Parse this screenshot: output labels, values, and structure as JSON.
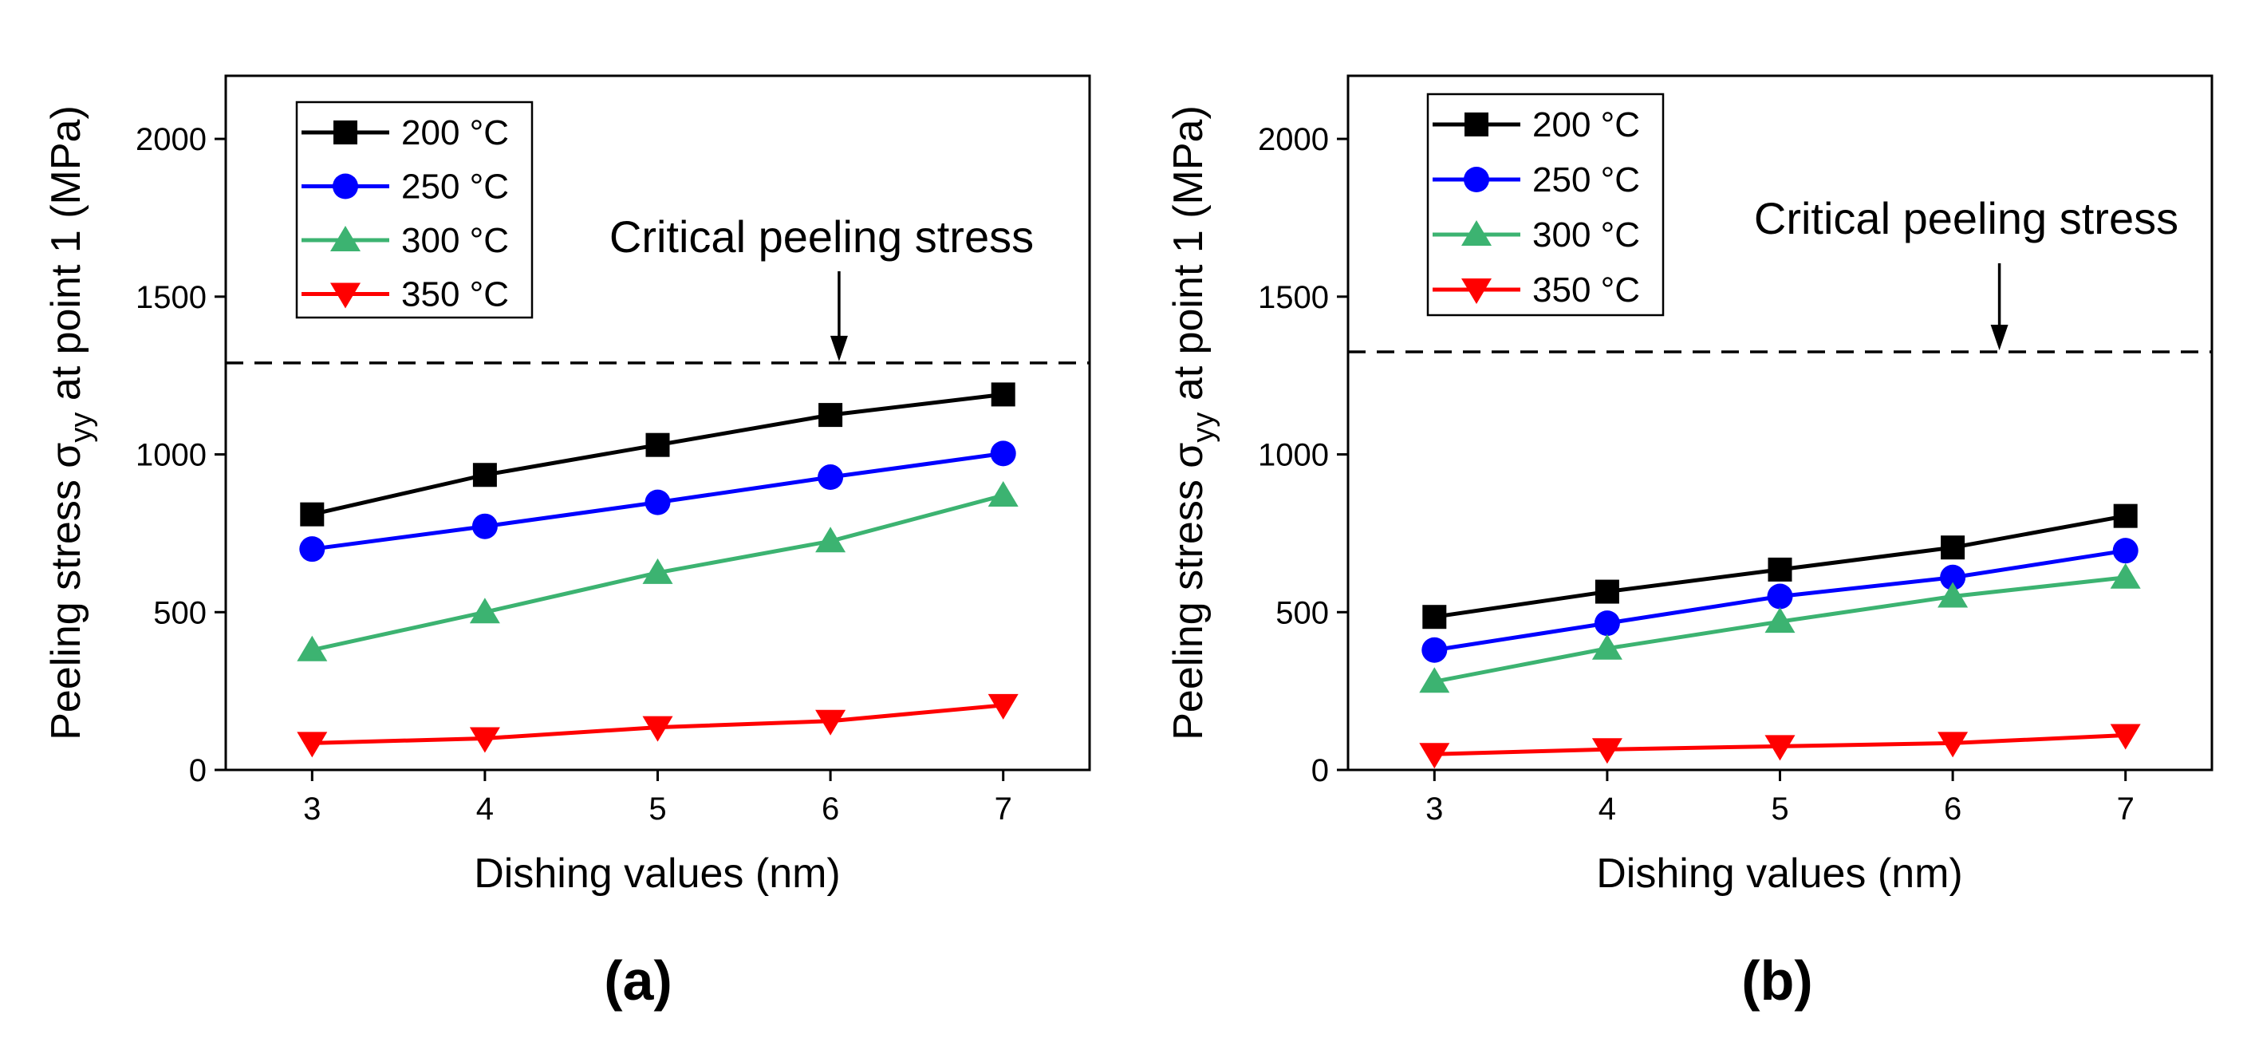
{
  "chart_data": [
    {
      "type": "line",
      "panel_label": "(a)",
      "xlabel": "Dishing values (nm)",
      "ylabel_prefix": "Peeling stress σ",
      "ylabel_sub": "yy",
      "ylabel_suffix": " at point 1 (MPa)",
      "x": [
        3,
        4,
        5,
        6,
        7
      ],
      "xlim": [
        2.5,
        7.5
      ],
      "ylim": [
        0,
        2200
      ],
      "xticks": [
        3,
        4,
        5,
        6,
        7
      ],
      "yticks": [
        0,
        500,
        1000,
        1500,
        2000
      ],
      "legend_position": "top-left",
      "series": [
        {
          "name": "200 °C",
          "color": "#000000",
          "marker": "square",
          "values": [
            810,
            935,
            1030,
            1125,
            1190
          ]
        },
        {
          "name": "250 °C",
          "color": "#0000ff",
          "marker": "circle",
          "values": [
            700,
            772,
            848,
            928,
            1003
          ]
        },
        {
          "name": "300 °C",
          "color": "#3cb371",
          "marker": "triangle-up",
          "values": [
            380,
            500,
            625,
            725,
            870
          ]
        },
        {
          "name": "350 °C",
          "color": "#ff0000",
          "marker": "triangle-down",
          "values": [
            85,
            100,
            135,
            155,
            205
          ]
        }
      ],
      "reference_line": {
        "value": 1290,
        "style": "dashed"
      },
      "annotation": {
        "text": "Critical peeling stress",
        "arrow_x": 6.05
      }
    },
    {
      "type": "line",
      "panel_label": "(b)",
      "xlabel": "Dishing values (nm)",
      "ylabel_prefix": "Peeling stress σ",
      "ylabel_sub": "yy",
      "ylabel_suffix": " at point 1 (MPa)",
      "x": [
        3,
        4,
        5,
        6,
        7
      ],
      "xlim": [
        2.5,
        7.5
      ],
      "ylim": [
        0,
        2200
      ],
      "xticks": [
        3,
        4,
        5,
        6,
        7
      ],
      "yticks": [
        0,
        500,
        1000,
        1500,
        2000
      ],
      "legend_position": "top-left",
      "series": [
        {
          "name": "200 °C",
          "color": "#000000",
          "marker": "square",
          "values": [
            485,
            565,
            635,
            705,
            805
          ]
        },
        {
          "name": "250 °C",
          "color": "#0000ff",
          "marker": "circle",
          "values": [
            380,
            465,
            550,
            610,
            695
          ]
        },
        {
          "name": "300 °C",
          "color": "#3cb371",
          "marker": "triangle-up",
          "values": [
            280,
            385,
            470,
            550,
            610
          ]
        },
        {
          "name": "350 °C",
          "color": "#ff0000",
          "marker": "triangle-down",
          "values": [
            50,
            65,
            75,
            85,
            110
          ]
        }
      ],
      "reference_line": {
        "value": 1325,
        "style": "dashed"
      },
      "annotation": {
        "text": "Critical peeling stress",
        "arrow_x": 6.27
      }
    }
  ]
}
